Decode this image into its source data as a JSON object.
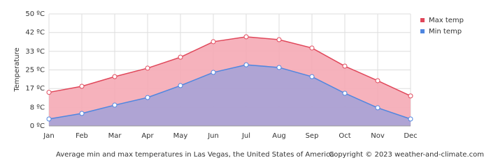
{
  "chart_data": {
    "type": "area",
    "y_label": "Temperature",
    "caption": "Average min and max temperatures in Las Vegas, the United States of America",
    "copyright": "Copyright © 2023  weather-and-climate.com",
    "categories": [
      "Jan",
      "Feb",
      "Mar",
      "Apr",
      "May",
      "Jun",
      "Jul",
      "Aug",
      "Sep",
      "Oct",
      "Nov",
      "Dec"
    ],
    "series": [
      {
        "name": "Max temp",
        "color": "#e0475a",
        "fill": "#f5aab5",
        "values": [
          15,
          17.7,
          22,
          25.8,
          30.7,
          37.6,
          39.8,
          38.5,
          34.8,
          26.7,
          20.2,
          13.4
        ]
      },
      {
        "name": "Min temp",
        "color": "#4f86e0",
        "fill": "#a7a2d6",
        "values": [
          3.1,
          5.6,
          9.3,
          12.7,
          18,
          23.9,
          27.3,
          26.1,
          22,
          14.6,
          8.1,
          3.1
        ]
      }
    ],
    "ylim": [
      0,
      50
    ],
    "yticks": [
      {
        "value": 0,
        "label": "0 ºC"
      },
      {
        "value": 8.3,
        "label": "8 ºC"
      },
      {
        "value": 16.7,
        "label": "17 ºC"
      },
      {
        "value": 25,
        "label": "25 ºC"
      },
      {
        "value": 33.3,
        "label": "33 ºC"
      },
      {
        "value": 41.7,
        "label": "42 ºC"
      },
      {
        "value": 50,
        "label": "50 ºC"
      }
    ],
    "grid": true,
    "legend": "top-right"
  }
}
